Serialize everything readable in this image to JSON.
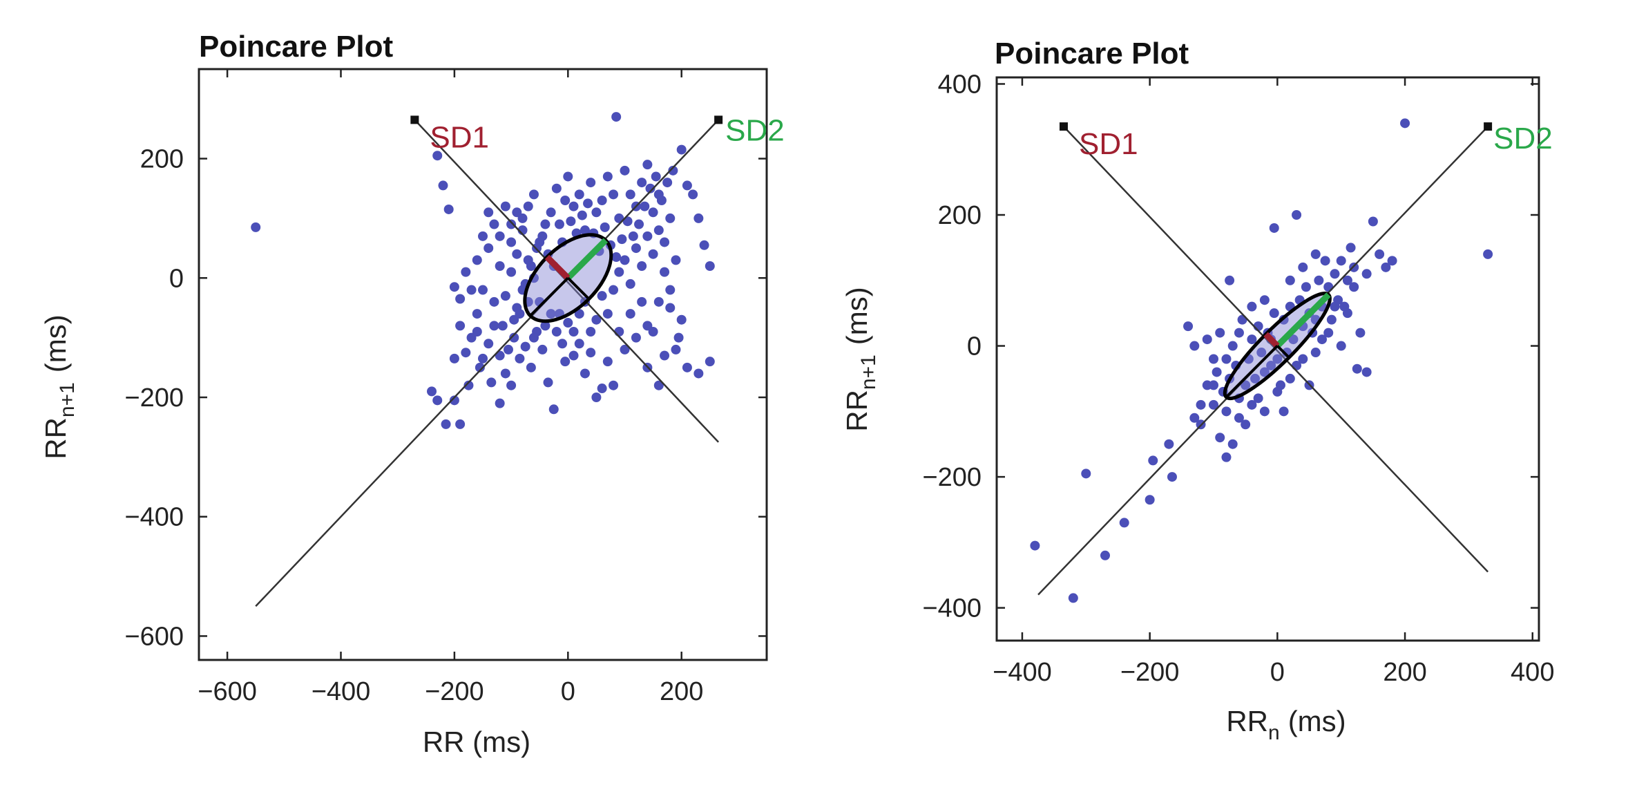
{
  "chart_data": [
    {
      "type": "scatter",
      "title": "Poincare Plot",
      "xlabel": "RR  (ms)",
      "ylabel_main": "RR",
      "ylabel_sub": "n+1",
      "ylabel_unit": "(ms)",
      "xlim": [
        -650,
        350
      ],
      "ylim": [
        -640,
        350
      ],
      "xticks": [
        -600,
        -400,
        -200,
        0,
        200
      ],
      "yticks": [
        -600,
        -400,
        -200,
        0,
        200
      ],
      "xtick_labels": [
        "−600",
        "−400",
        "−200",
        "0",
        "200"
      ],
      "ytick_labels": [
        "−600",
        "−400",
        "−200",
        "0",
        "200"
      ],
      "grid": false,
      "sd1_label": "SD1",
      "sd2_label": "SD2",
      "sd1_color": "#a02030",
      "sd2_color": "#2aa84a",
      "point_color": "#4b4fb8",
      "ellipse_center": [
        0,
        0
      ],
      "sd1": 50,
      "sd2": 90,
      "line_of_identity": [
        [
          -550,
          -550
        ],
        [
          265,
          265
        ]
      ],
      "perpendicular_axis": [
        [
          -270,
          265
        ],
        [
          265,
          -275
        ]
      ],
      "points": [
        [
          -550,
          85
        ],
        [
          -230,
          205
        ],
        [
          -220,
          155
        ],
        [
          -210,
          115
        ],
        [
          -200,
          -15
        ],
        [
          -190,
          -35
        ],
        [
          -240,
          -190
        ],
        [
          -230,
          -205
        ],
        [
          -215,
          -245
        ],
        [
          -200,
          -205
        ],
        [
          -190,
          -245
        ],
        [
          -200,
          -135
        ],
        [
          -180,
          -125
        ],
        [
          -170,
          -100
        ],
        [
          -160,
          -90
        ],
        [
          -150,
          -135
        ],
        [
          -140,
          -110
        ],
        [
          -130,
          -80
        ],
        [
          -120,
          -130
        ],
        [
          -110,
          -160
        ],
        [
          -100,
          -180
        ],
        [
          -95,
          -70
        ],
        [
          -85,
          -135
        ],
        [
          -75,
          -115
        ],
        [
          -65,
          -150
        ],
        [
          -55,
          -90
        ],
        [
          -45,
          -120
        ],
        [
          -35,
          -175
        ],
        [
          -25,
          -220
        ],
        [
          -15,
          -60
        ],
        [
          -5,
          -140
        ],
        [
          10,
          -90
        ],
        [
          20,
          -110
        ],
        [
          30,
          -160
        ],
        [
          40,
          -125
        ],
        [
          50,
          -200
        ],
        [
          60,
          -185
        ],
        [
          70,
          -140
        ],
        [
          80,
          -180
        ],
        [
          90,
          -90
        ],
        [
          100,
          -120
        ],
        [
          120,
          -100
        ],
        [
          140,
          -80
        ],
        [
          160,
          -40
        ],
        [
          180,
          -20
        ],
        [
          200,
          -70
        ],
        [
          -120,
          -210
        ],
        [
          -100,
          10
        ],
        [
          -90,
          40
        ],
        [
          -80,
          80
        ],
        [
          -70,
          120
        ],
        [
          -60,
          140
        ],
        [
          -50,
          60
        ],
        [
          -40,
          90
        ],
        [
          -30,
          110
        ],
        [
          -20,
          150
        ],
        [
          -10,
          60
        ],
        [
          0,
          170
        ],
        [
          10,
          120
        ],
        [
          20,
          140
        ],
        [
          30,
          80
        ],
        [
          40,
          160
        ],
        [
          50,
          110
        ],
        [
          60,
          130
        ],
        [
          70,
          170
        ],
        [
          80,
          140
        ],
        [
          90,
          100
        ],
        [
          100,
          180
        ],
        [
          110,
          140
        ],
        [
          120,
          120
        ],
        [
          130,
          160
        ],
        [
          140,
          190
        ],
        [
          150,
          110
        ],
        [
          160,
          140
        ],
        [
          170,
          60
        ],
        [
          180,
          100
        ],
        [
          200,
          215
        ],
        [
          210,
          155
        ],
        [
          220,
          140
        ],
        [
          230,
          100
        ],
        [
          240,
          55
        ],
        [
          250,
          20
        ],
        [
          85,
          270
        ],
        [
          -160,
          30
        ],
        [
          -150,
          -20
        ],
        [
          -140,
          50
        ],
        [
          -130,
          -40
        ],
        [
          -120,
          70
        ],
        [
          -110,
          -30
        ],
        [
          -100,
          90
        ],
        [
          -90,
          -50
        ],
        [
          -80,
          -20
        ],
        [
          -70,
          30
        ],
        [
          -60,
          -100
        ],
        [
          -50,
          -40
        ],
        [
          -40,
          -80
        ],
        [
          -30,
          -60
        ],
        [
          -20,
          -90
        ],
        [
          -10,
          -110
        ],
        [
          0,
          -75
        ],
        [
          10,
          -130
        ],
        [
          20,
          -60
        ],
        [
          30,
          -40
        ],
        [
          40,
          -90
        ],
        [
          50,
          -70
        ],
        [
          60,
          -30
        ],
        [
          70,
          -60
        ],
        [
          80,
          -20
        ],
        [
          90,
          10
        ],
        [
          100,
          30
        ],
        [
          110,
          -10
        ],
        [
          120,
          50
        ],
        [
          130,
          20
        ],
        [
          140,
          70
        ],
        [
          150,
          40
        ],
        [
          160,
          80
        ],
        [
          170,
          10
        ],
        [
          180,
          -50
        ],
        [
          190,
          30
        ],
        [
          195,
          -100
        ],
        [
          -175,
          -180
        ],
        [
          -155,
          -150
        ],
        [
          -135,
          -175
        ],
        [
          -115,
          -80
        ],
        [
          -105,
          -120
        ],
        [
          -95,
          -100
        ],
        [
          -85,
          -60
        ],
        [
          -75,
          -10
        ],
        [
          -65,
          20
        ],
        [
          -55,
          50
        ],
        [
          -45,
          70
        ],
        [
          -35,
          40
        ],
        [
          -25,
          20
        ],
        [
          -15,
          90
        ],
        [
          -5,
          130
        ],
        [
          5,
          95
        ],
        [
          15,
          75
        ],
        [
          25,
          105
        ],
        [
          35,
          125
        ],
        [
          45,
          75
        ],
        [
          55,
          45
        ],
        [
          65,
          85
        ],
        [
          75,
          55
        ],
        [
          85,
          35
        ],
        [
          95,
          65
        ],
        [
          105,
          95
        ],
        [
          115,
          70
        ],
        [
          125,
          90
        ],
        [
          135,
          120
        ],
        [
          145,
          150
        ],
        [
          155,
          170
        ],
        [
          165,
          130
        ],
        [
          175,
          160
        ],
        [
          185,
          180
        ],
        [
          -60,
          0
        ],
        [
          -70,
          -40
        ],
        [
          -80,
          100
        ],
        [
          -90,
          110
        ],
        [
          -100,
          60
        ],
        [
          -110,
          120
        ],
        [
          -120,
          20
        ],
        [
          -130,
          90
        ],
        [
          -140,
          110
        ],
        [
          -150,
          70
        ],
        [
          -160,
          -60
        ],
        [
          -170,
          -20
        ],
        [
          -180,
          10
        ],
        [
          -190,
          -80
        ],
        [
          110,
          -60
        ],
        [
          130,
          -40
        ],
        [
          150,
          -90
        ],
        [
          170,
          -130
        ],
        [
          190,
          -120
        ],
        [
          210,
          -150
        ],
        [
          230,
          -160
        ],
        [
          250,
          -140
        ],
        [
          160,
          -180
        ],
        [
          140,
          -150
        ]
      ]
    },
    {
      "type": "scatter",
      "title": "Poincare Plot",
      "xlabel_main": "RR",
      "xlabel_sub": "n",
      "xlabel_unit": "(ms)",
      "ylabel_main": "RR",
      "ylabel_sub": "n+1",
      "ylabel_unit": "(ms)",
      "xlim": [
        -440,
        410
      ],
      "ylim": [
        -450,
        410
      ],
      "xticks": [
        -400,
        -200,
        0,
        200,
        400
      ],
      "yticks": [
        -400,
        -200,
        0,
        200,
        400
      ],
      "xtick_labels": [
        "−400",
        "−200",
        "0",
        "200",
        "400"
      ],
      "ytick_labels": [
        "−400",
        "−200",
        "0",
        "200",
        "400"
      ],
      "grid": false,
      "sd1_label": "SD1",
      "sd2_label": "SD2",
      "sd1_color": "#a02030",
      "sd2_color": "#2aa84a",
      "point_color": "#4b4fb8",
      "ellipse_center": [
        0,
        0
      ],
      "sd1": 25,
      "sd2": 110,
      "line_of_identity": [
        [
          -375,
          -380
        ],
        [
          330,
          335
        ]
      ],
      "perpendicular_axis": [
        [
          -335,
          335
        ],
        [
          330,
          -345
        ]
      ],
      "points": [
        [
          -380,
          -305
        ],
        [
          -320,
          -385
        ],
        [
          -300,
          -195
        ],
        [
          -270,
          -320
        ],
        [
          -240,
          -270
        ],
        [
          -200,
          -235
        ],
        [
          -195,
          -175
        ],
        [
          -170,
          -150
        ],
        [
          -165,
          -200
        ],
        [
          -140,
          30
        ],
        [
          -130,
          -110
        ],
        [
          -120,
          -90
        ],
        [
          -110,
          -60
        ],
        [
          -100,
          -20
        ],
        [
          -95,
          -40
        ],
        [
          -90,
          20
        ],
        [
          -85,
          -70
        ],
        [
          -80,
          -100
        ],
        [
          -75,
          -50
        ],
        [
          -70,
          0
        ],
        [
          -65,
          -30
        ],
        [
          -60,
          -80
        ],
        [
          -55,
          40
        ],
        [
          -50,
          -60
        ],
        [
          -45,
          -20
        ],
        [
          -40,
          10
        ],
        [
          -35,
          -50
        ],
        [
          -30,
          30
        ],
        [
          -25,
          -10
        ],
        [
          -20,
          -40
        ],
        [
          -15,
          20
        ],
        [
          -10,
          -30
        ],
        [
          -5,
          50
        ],
        [
          0,
          -20
        ],
        [
          5,
          -60
        ],
        [
          10,
          40
        ],
        [
          15,
          -10
        ],
        [
          20,
          60
        ],
        [
          25,
          10
        ],
        [
          30,
          -30
        ],
        [
          35,
          70
        ],
        [
          40,
          30
        ],
        [
          45,
          90
        ],
        [
          50,
          50
        ],
        [
          55,
          20
        ],
        [
          60,
          -10
        ],
        [
          65,
          100
        ],
        [
          70,
          60
        ],
        [
          75,
          130
        ],
        [
          80,
          90
        ],
        [
          85,
          40
        ],
        [
          90,
          110
        ],
        [
          95,
          70
        ],
        [
          100,
          130
        ],
        [
          105,
          60
        ],
        [
          110,
          100
        ],
        [
          115,
          150
        ],
        [
          120,
          90
        ],
        [
          125,
          -35
        ],
        [
          130,
          20
        ],
        [
          140,
          -40
        ],
        [
          150,
          190
        ],
        [
          180,
          130
        ],
        [
          200,
          340
        ],
        [
          330,
          140
        ],
        [
          -5,
          180
        ],
        [
          30,
          200
        ],
        [
          -75,
          100
        ],
        [
          -60,
          -110
        ],
        [
          -40,
          -90
        ],
        [
          -20,
          -100
        ],
        [
          0,
          -70
        ],
        [
          20,
          -50
        ],
        [
          40,
          -20
        ],
        [
          60,
          40
        ],
        [
          80,
          20
        ],
        [
          100,
          0
        ],
        [
          110,
          50
        ],
        [
          -100,
          -90
        ],
        [
          -110,
          10
        ],
        [
          -90,
          -140
        ],
        [
          -80,
          -170
        ],
        [
          -70,
          -150
        ],
        [
          -50,
          -120
        ],
        [
          -30,
          -80
        ],
        [
          -10,
          10
        ],
        [
          10,
          -100
        ],
        [
          50,
          -60
        ],
        [
          70,
          10
        ],
        [
          90,
          60
        ],
        [
          120,
          120
        ],
        [
          140,
          110
        ],
        [
          160,
          140
        ],
        [
          170,
          120
        ],
        [
          60,
          140
        ],
        [
          40,
          120
        ],
        [
          20,
          100
        ],
        [
          -20,
          70
        ],
        [
          -40,
          60
        ],
        [
          -60,
          20
        ],
        [
          -80,
          -20
        ],
        [
          -100,
          -60
        ],
        [
          -120,
          -120
        ],
        [
          -130,
          0
        ]
      ]
    }
  ]
}
